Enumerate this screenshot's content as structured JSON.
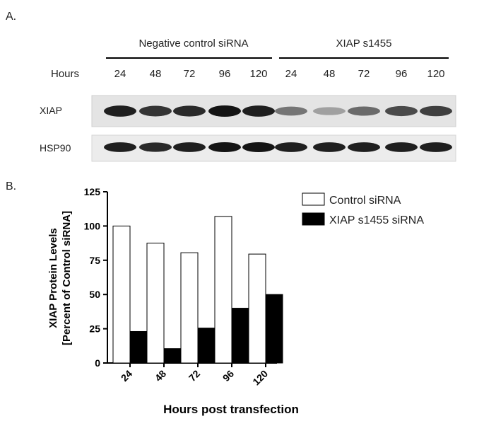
{
  "panel_a": {
    "label": "A.",
    "group_labels": [
      "Negative control siRNA",
      "XIAP s1455"
    ],
    "hours_label": "Hours",
    "hours": [
      "24",
      "48",
      "72",
      "96",
      "120",
      "24",
      "48",
      "72",
      "96",
      "120"
    ],
    "row_labels": [
      "XIAP",
      "HSP90"
    ],
    "xiap_band_intensity": [
      0.95,
      0.85,
      0.9,
      1.0,
      0.95,
      0.55,
      0.35,
      0.6,
      0.75,
      0.8
    ],
    "hsp90_band_intensity": [
      0.95,
      0.9,
      0.95,
      1.0,
      1.0,
      0.95,
      0.95,
      0.95,
      0.95,
      0.95
    ]
  },
  "panel_b": {
    "label": "B."
  },
  "chart_data": {
    "type": "bar",
    "title": "",
    "categories": [
      "24",
      "48",
      "72",
      "96",
      "120"
    ],
    "series": [
      {
        "name": "Control siRNA",
        "values": [
          100,
          87.5,
          80.5,
          107,
          79.5
        ],
        "color": "#ffffff"
      },
      {
        "name": "XIAP s1455 siRNA",
        "values": [
          23,
          10.5,
          25.5,
          40,
          50
        ],
        "color": "#000000"
      }
    ],
    "xlabel": "Hours post transfection",
    "ylabel_line1": "XIAP Protein  Levels",
    "ylabel_line2": "[Percent of Control siRNA]",
    "ylim": [
      0,
      125
    ],
    "yticks": [
      "0",
      "25",
      "50",
      "75",
      "100",
      "125"
    ],
    "legend_position": "top-right",
    "grid": false
  }
}
